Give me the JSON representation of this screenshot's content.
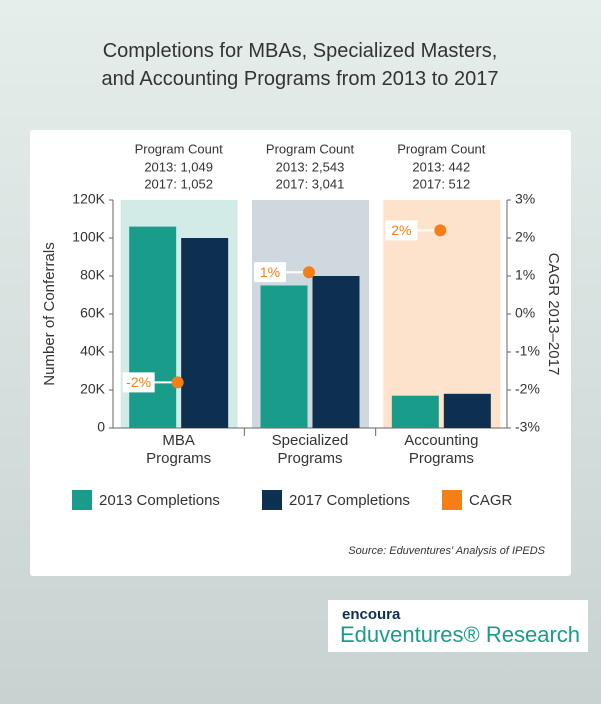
{
  "chart_data": {
    "type": "bar",
    "title": "Completions for MBAs, Specialized Masters, and Accounting Programs from 2013 to 2017",
    "categories": [
      "MBA Programs",
      "Specialized Programs",
      "Accounting Programs"
    ],
    "category_colors": [
      "#d3ebe6",
      "#cfd8df",
      "#fde3cc"
    ],
    "annotations": [
      {
        "title": "Program Count",
        "lines": [
          "2013: 1,049",
          "2017: 1,052"
        ]
      },
      {
        "title": "Program Count",
        "lines": [
          "2013: 2,543",
          "2017: 3,041"
        ]
      },
      {
        "title": "Program Count",
        "lines": [
          "2013: 442",
          "2017: 512"
        ]
      }
    ],
    "series": [
      {
        "name": "2013 Completions",
        "color": "#1a9c8a",
        "values": [
          106000,
          75000,
          17000
        ]
      },
      {
        "name": "2017 Completions",
        "color": "#0d3050",
        "values": [
          100000,
          80000,
          18000
        ]
      },
      {
        "name": "CAGR",
        "color": "#f47f16",
        "axis": "y2",
        "values": [
          -1.8,
          1.1,
          2.2
        ],
        "value_labels": [
          "-2%",
          "1%",
          "2%"
        ]
      }
    ],
    "ylabel": "Number of Conferrals",
    "y2label": "CAGR 2013–2017",
    "ylim": [
      0,
      120000
    ],
    "yticks": [
      0,
      {
        "value": 20000,
        "label": "20K"
      },
      {
        "value": 40000,
        "label": "40K"
      },
      {
        "value": 60000,
        "label": "60K"
      },
      {
        "value": 80000,
        "label": "80K"
      },
      {
        "value": 100000,
        "label": "100K"
      },
      {
        "value": 120000,
        "label": "120K"
      }
    ],
    "y2lim": [
      -3,
      3
    ],
    "y2ticks": [
      {
        "value": -3,
        "label": "-3%"
      },
      {
        "value": -2,
        "label": "-2%"
      },
      {
        "value": -1,
        "label": "-1%"
      },
      {
        "value": 0,
        "label": "0%"
      },
      {
        "value": 1,
        "label": "1%"
      },
      {
        "value": 2,
        "label": "2%"
      },
      {
        "value": 3,
        "label": "3%"
      }
    ],
    "source": "Source: Eduventures' Analysis of IPEDS",
    "brand": "encoura",
    "brand_subtitle": "Eduventures® Research"
  }
}
